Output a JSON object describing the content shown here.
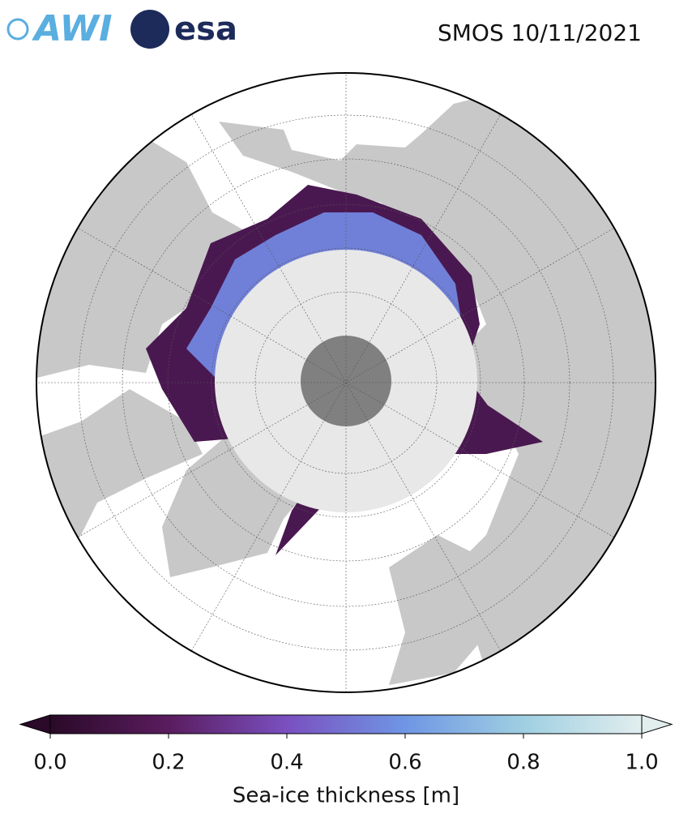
{
  "logos": {
    "awi": "AWI",
    "esa": "esa"
  },
  "title": "SMOS 10/11/2021",
  "colorbar": {
    "label": "Sea-ice thickness [m]",
    "lim": [
      0,
      1
    ],
    "ticks": [
      {
        "value": 0,
        "label": "0.0"
      },
      {
        "value": 0.2,
        "label": "0.2"
      },
      {
        "value": 0.4,
        "label": "0.4"
      },
      {
        "value": 0.6,
        "label": "0.6"
      },
      {
        "value": 0.8,
        "label": "0.8"
      },
      {
        "value": 1,
        "label": "1.0"
      }
    ],
    "extend": "both",
    "colors": [
      "#2a0a28",
      "#5a1c5e",
      "#7a50c0",
      "#6f96e4",
      "#9fcfe2",
      "#e2eeee"
    ]
  }
}
